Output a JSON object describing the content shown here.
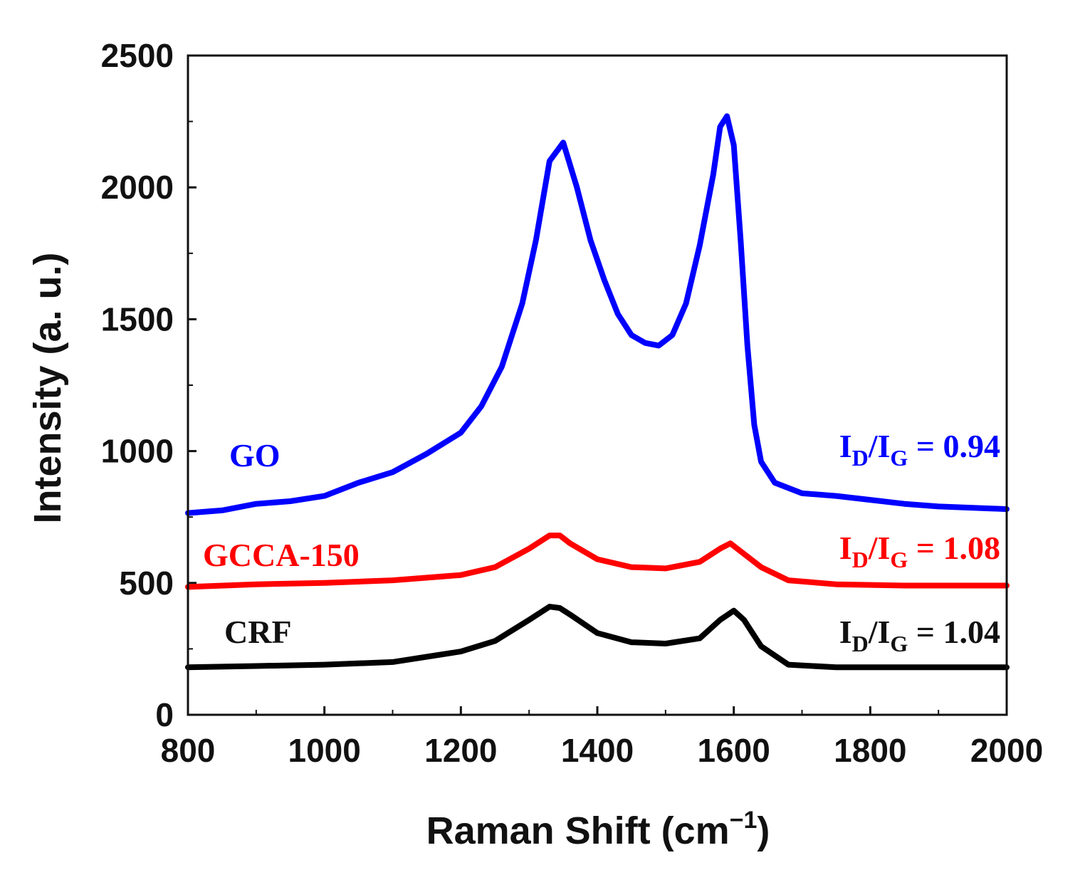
{
  "chart_data": {
    "type": "line",
    "title": "",
    "xlabel": "Raman Shift (cm",
    "xlabel_sup": "−1",
    "xlabel_close": ")",
    "ylabel": "Intensity (a. u.)",
    "xlim": [
      800,
      2000
    ],
    "ylim": [
      0,
      2500
    ],
    "xticks": [
      "800",
      "1000",
      "1200",
      "1400",
      "1600",
      "1800",
      "2000"
    ],
    "yticks": [
      "0",
      "500",
      "1000",
      "1500",
      "2000",
      "2500"
    ],
    "grid": false,
    "series": [
      {
        "name": "GO",
        "color": "#0000ff",
        "ratio_prefix": "I",
        "ratio_sub1": "D",
        "ratio_mid": "/I",
        "ratio_sub2": "G",
        "ratio_value": " = 0.94",
        "x": [
          800,
          850,
          900,
          950,
          1000,
          1050,
          1100,
          1150,
          1200,
          1230,
          1260,
          1290,
          1310,
          1330,
          1350,
          1370,
          1390,
          1410,
          1430,
          1450,
          1470,
          1490,
          1510,
          1530,
          1550,
          1570,
          1580,
          1590,
          1600,
          1610,
          1620,
          1630,
          1640,
          1660,
          1700,
          1750,
          1800,
          1850,
          1900,
          1950,
          2000
        ],
        "y": [
          765,
          775,
          800,
          810,
          830,
          880,
          920,
          990,
          1070,
          1170,
          1320,
          1560,
          1800,
          2100,
          2170,
          2000,
          1800,
          1650,
          1520,
          1440,
          1410,
          1400,
          1440,
          1560,
          1780,
          2050,
          2230,
          2270,
          2160,
          1800,
          1400,
          1100,
          960,
          880,
          840,
          830,
          815,
          800,
          790,
          785,
          780
        ]
      },
      {
        "name": "GCCA-150",
        "color": "#ff0000",
        "ratio_prefix": "I",
        "ratio_sub1": "D",
        "ratio_mid": "/I",
        "ratio_sub2": "G",
        "ratio_value": " = 1.08",
        "x": [
          800,
          900,
          1000,
          1100,
          1200,
          1250,
          1300,
          1330,
          1345,
          1360,
          1400,
          1450,
          1500,
          1550,
          1580,
          1595,
          1610,
          1640,
          1680,
          1750,
          1850,
          2000
        ],
        "y": [
          485,
          495,
          500,
          510,
          530,
          560,
          630,
          680,
          680,
          650,
          590,
          560,
          555,
          580,
          630,
          650,
          620,
          560,
          510,
          495,
          490,
          490
        ]
      },
      {
        "name": "CRF",
        "color": "#000000",
        "ratio_prefix": "I",
        "ratio_sub1": "D",
        "ratio_mid": "/I",
        "ratio_sub2": "G",
        "ratio_value": " = 1.04",
        "x": [
          800,
          900,
          1000,
          1100,
          1150,
          1200,
          1250,
          1300,
          1330,
          1345,
          1360,
          1400,
          1450,
          1500,
          1550,
          1580,
          1600,
          1615,
          1640,
          1680,
          1750,
          1850,
          2000
        ],
        "y": [
          180,
          185,
          190,
          200,
          220,
          240,
          280,
          360,
          410,
          405,
          380,
          310,
          275,
          270,
          290,
          360,
          395,
          360,
          260,
          190,
          180,
          180,
          180
        ]
      }
    ]
  }
}
